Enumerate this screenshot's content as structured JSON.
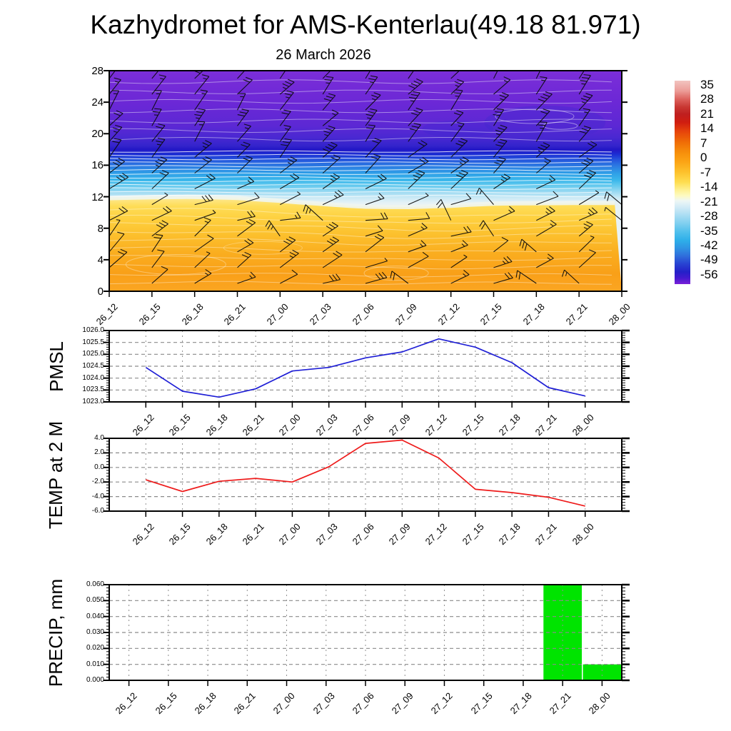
{
  "title": "Kazhydromet for AMS-Kenterlau(49.18 81.971)",
  "subtitle": "26 March 2026",
  "times": [
    "26_12",
    "26_15",
    "26_18",
    "26_21",
    "27_00",
    "27_03",
    "27_06",
    "27_09",
    "27_12",
    "27_15",
    "27_18",
    "27_21",
    "28_00"
  ],
  "colorbar": {
    "tick_labels": [
      "35",
      "28",
      "21",
      "14",
      "7",
      "0",
      "-7",
      "-14",
      "-21",
      "-28",
      "-35",
      "-42",
      "-49",
      "-56"
    ],
    "gradient_stops": [
      [
        0,
        "#f2c4c0"
      ],
      [
        0.05,
        "#ec9d98"
      ],
      [
        0.09,
        "#dd635e"
      ],
      [
        0.13,
        "#c83732"
      ],
      [
        0.165,
        "#bf1f1f"
      ],
      [
        0.205,
        "#d01d10"
      ],
      [
        0.25,
        "#e6440b"
      ],
      [
        0.3,
        "#ef6b06"
      ],
      [
        0.35,
        "#f68d0a"
      ],
      [
        0.4,
        "#fca515"
      ],
      [
        0.45,
        "#fdc22c"
      ],
      [
        0.5,
        "#fede52"
      ],
      [
        0.535,
        "#fef08f"
      ],
      [
        0.565,
        "#fdfac0"
      ],
      [
        0.59,
        "#eef7f5"
      ],
      [
        0.625,
        "#cfeaf6"
      ],
      [
        0.665,
        "#a6dcf3"
      ],
      [
        0.705,
        "#7cceef"
      ],
      [
        0.745,
        "#4fbfec"
      ],
      [
        0.785,
        "#2eafe9"
      ],
      [
        0.825,
        "#2f92e3"
      ],
      [
        0.865,
        "#2f6adb"
      ],
      [
        0.9,
        "#2843d2"
      ],
      [
        0.94,
        "#2420c8"
      ],
      [
        0.97,
        "#4419cf"
      ],
      [
        1,
        "#7a20d8"
      ]
    ]
  },
  "chart_data": [
    {
      "type": "heatmap",
      "name": "temperature-wind-cross-section",
      "categories": [
        "26_12",
        "26_15",
        "26_18",
        "26_21",
        "27_00",
        "27_03",
        "27_06",
        "27_09",
        "27_12",
        "27_15",
        "27_18",
        "27_21",
        "28_00"
      ],
      "ylim": [
        0,
        28
      ],
      "ytick_labels": [
        "28",
        "24",
        "20",
        "16",
        "12",
        "8",
        "4",
        "0"
      ],
      "legend": "shaded temperature (degC) with wind barbs; colorbar 35 to -56 step -7",
      "gradient_stops": [
        [
          0,
          "#7b2ed8"
        ],
        [
          0.14,
          "#6c28d6"
        ],
        [
          0.25,
          "#5c28d4"
        ],
        [
          0.3,
          "#4b28d2"
        ],
        [
          0.34,
          "#3424cc"
        ],
        [
          0.357,
          "#2317c6"
        ],
        [
          0.38,
          "#1c2fd4"
        ],
        [
          0.4,
          "#2450dc"
        ],
        [
          0.43,
          "#2b78e2"
        ],
        [
          0.465,
          "#2f9fe7"
        ],
        [
          0.495,
          "#38b6eb"
        ],
        [
          0.52,
          "#62c9ee"
        ],
        [
          0.55,
          "#9cdaf2"
        ],
        [
          0.575,
          "#c9e9f5"
        ],
        [
          0.6,
          "#e6f2f6"
        ],
        [
          1,
          "#eaf4f7"
        ]
      ],
      "warm_layer_boundary_km": [
        11.9,
        11.9,
        11.85,
        11.75,
        11.5,
        11.2,
        10.85,
        10.7,
        10.75,
        11.0,
        11.15,
        11.3,
        11.35
      ],
      "warm_gradient_stops": [
        [
          0,
          "#fdf6c0"
        ],
        [
          0.06,
          "#fee990"
        ],
        [
          0.14,
          "#fedd58"
        ],
        [
          0.26,
          "#fed140"
        ],
        [
          0.43,
          "#fcc02d"
        ],
        [
          0.62,
          "#faad1f"
        ],
        [
          0.82,
          "#f9a018"
        ],
        [
          1,
          "#fba522"
        ]
      ],
      "wind_profile": {
        "heights_km": [
          27,
          25,
          23,
          21,
          19,
          17,
          15,
          13,
          11,
          9,
          7,
          5,
          3,
          1
        ],
        "base_angle_deg": [
          38,
          40,
          36,
          40,
          37,
          45,
          52,
          58,
          66,
          58,
          46,
          40,
          44,
          52
        ]
      }
    },
    {
      "type": "line",
      "name": "pmsl",
      "axis_title": "PMSL",
      "color": "#1f1fd6",
      "categories": [
        "26_12",
        "26_15",
        "26_18",
        "26_21",
        "27_00",
        "27_03",
        "27_06",
        "27_09",
        "27_12",
        "27_15",
        "27_18",
        "27_21",
        "28_00"
      ],
      "ylim": [
        1023.0,
        1026.0
      ],
      "ytick_labels": [
        "1026.0",
        "1025.5",
        "1025.0",
        "1024.5",
        "1024.0",
        "1023.5",
        "1023.0"
      ],
      "values": [
        1024.45,
        1023.45,
        1023.2,
        1023.55,
        1024.3,
        1024.45,
        1024.85,
        1025.1,
        1025.65,
        1025.3,
        1024.65,
        1023.6,
        1023.25
      ]
    },
    {
      "type": "line",
      "name": "temp-2m",
      "axis_title": "TEMP at 2 M",
      "color": "#ee1b1b",
      "categories": [
        "26_12",
        "26_15",
        "26_18",
        "26_21",
        "27_00",
        "27_03",
        "27_06",
        "27_09",
        "27_12",
        "27_15",
        "27_18",
        "27_21",
        "28_00"
      ],
      "ylim": [
        -6.0,
        4.0
      ],
      "ytick_labels": [
        "4.0",
        "2.0",
        "0.0",
        "-2.0",
        "-4.0",
        "-6.0"
      ],
      "values": [
        -1.7,
        -3.3,
        -1.9,
        -1.5,
        -2.0,
        0.1,
        3.3,
        3.75,
        1.3,
        -3.0,
        -3.45,
        -4.1,
        -5.3
      ]
    },
    {
      "type": "bar",
      "name": "precip",
      "axis_title": "PRECIP, mm",
      "color": "#00e400",
      "categories": [
        "26_12",
        "26_15",
        "26_18",
        "26_21",
        "27_00",
        "27_03",
        "27_06",
        "27_09",
        "27_12",
        "27_15",
        "27_18",
        "27_21",
        "28_00"
      ],
      "ylim": [
        0.0,
        0.06
      ],
      "ytick_labels": [
        "0.060",
        "0.050",
        "0.040",
        "0.030",
        "0.020",
        "0.010",
        "0.000"
      ],
      "values": [
        0,
        0,
        0,
        0,
        0,
        0,
        0,
        0,
        0,
        0,
        0,
        0.06,
        0.01
      ]
    }
  ]
}
